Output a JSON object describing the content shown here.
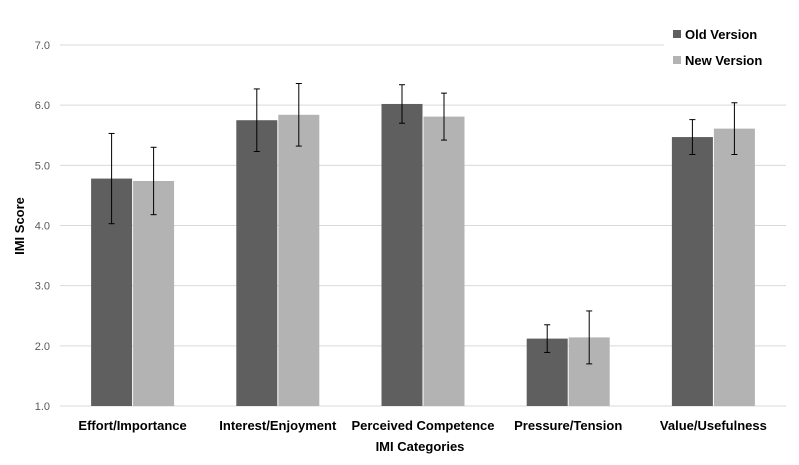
{
  "chart_data": {
    "type": "bar",
    "xlabel": "IMI Categories",
    "ylabel": "IMI Score",
    "ylim": [
      1.0,
      7.0
    ],
    "yticks": [
      "1.0",
      "2.0",
      "3.0",
      "4.0",
      "5.0",
      "6.0",
      "7.0"
    ],
    "grid": true,
    "legend_position": "top-right",
    "categories": [
      "Effort/Importance",
      "Interest/Enjoyment",
      "Perceived Competence",
      "Pressure/Tension",
      "Value/Usefulness"
    ],
    "series": [
      {
        "name": "Old Version",
        "color": "#5f5f5f",
        "values": [
          4.78,
          5.75,
          6.02,
          2.12,
          5.47
        ],
        "error": [
          0.75,
          0.52,
          0.32,
          0.23,
          0.29
        ]
      },
      {
        "name": "New Version",
        "color": "#b3b3b3",
        "values": [
          4.74,
          5.84,
          5.81,
          2.14,
          5.61
        ],
        "error": [
          0.56,
          0.52,
          0.39,
          0.44,
          0.43
        ]
      }
    ]
  }
}
